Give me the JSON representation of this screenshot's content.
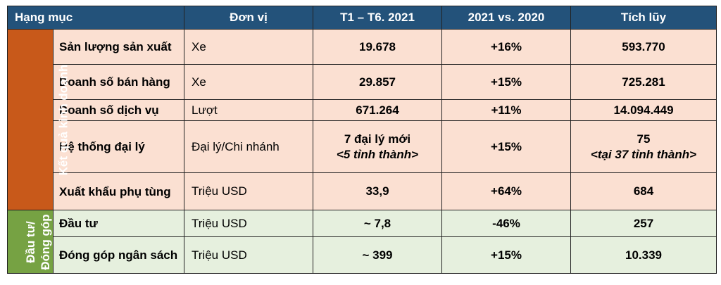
{
  "header": {
    "category": "Hạng mục",
    "unit": "Đơn vị",
    "period": "T1 – T6. 2021",
    "compare": "2021 vs. 2020",
    "cumulative": "Tích lũy"
  },
  "groups": {
    "business": "Kết quả kinh doanh",
    "investment": "Đầu tư/ Đóng góp"
  },
  "rows": [
    {
      "item": "Sản lượng sản xuất",
      "unit": "Xe",
      "period": "19.678",
      "compare": "+16%",
      "cumulative": "593.770"
    },
    {
      "item": "Doanh số bán hàng",
      "unit": "Xe",
      "period": "29.857",
      "compare": "+15%",
      "cumulative": "725.281"
    },
    {
      "item": "Doanh số dịch vụ",
      "unit": "Lượt",
      "period": "671.264",
      "compare": "+11%",
      "cumulative": "14.094.449"
    },
    {
      "item": "Hệ thống đại lý",
      "unit": "Đại lý/Chi nhánh",
      "period": "7 đại lý mới",
      "period_sub": "<5 tỉnh thành>",
      "compare": "+15%",
      "cumulative": "75",
      "cumulative_sub": "<tại 37 tỉnh thành>"
    },
    {
      "item": "Xuất khẩu phụ tùng",
      "unit": "Triệu USD",
      "period": "33,9",
      "compare": "+64%",
      "cumulative": "684"
    },
    {
      "item": "Đầu tư",
      "unit": "Triệu USD",
      "period": "~ 7,8",
      "compare": "-46%",
      "cumulative": "257"
    },
    {
      "item": "Đóng góp ngân sách",
      "unit": "Triệu USD",
      "period": "~ 399",
      "compare": "+15%",
      "cumulative": "10.339"
    }
  ]
}
